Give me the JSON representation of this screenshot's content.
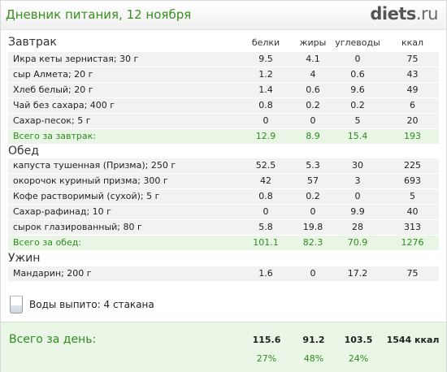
{
  "header": {
    "title": "Дневник питания, 12 ноября",
    "logo_main": "diets",
    "logo_tld": ".ru"
  },
  "columns": {
    "protein": "белки",
    "fat": "жиры",
    "carbs": "углеводы",
    "kcal": "ккал"
  },
  "sections": [
    {
      "title": "Завтрак",
      "items": [
        {
          "name": "Икра кеты зернистая; 30 г",
          "protein": "9.5",
          "fat": "4.1",
          "carbs": "0",
          "kcal": "75"
        },
        {
          "name": "сыр Алмета; 20 г",
          "protein": "1.2",
          "fat": "4",
          "carbs": "0.6",
          "kcal": "43"
        },
        {
          "name": "Хлеб белый; 20 г",
          "protein": "1.4",
          "fat": "0.6",
          "carbs": "9.6",
          "kcal": "49"
        },
        {
          "name": "Чай без сахара; 400 г",
          "protein": "0.8",
          "fat": "0.2",
          "carbs": "0.2",
          "kcal": "6"
        },
        {
          "name": "Сахар-песок; 5 г",
          "protein": "0",
          "fat": "0",
          "carbs": "5",
          "kcal": "20"
        }
      ],
      "total": {
        "name": "Всего за завтрак:",
        "protein": "12.9",
        "fat": "8.9",
        "carbs": "15.4",
        "kcal": "193"
      }
    },
    {
      "title": "Обед",
      "items": [
        {
          "name": "капуста тушенная (Призма); 250 г",
          "protein": "52.5",
          "fat": "5.3",
          "carbs": "30",
          "kcal": "225"
        },
        {
          "name": "окорочок куриный призма; 300 г",
          "protein": "42",
          "fat": "57",
          "carbs": "3",
          "kcal": "693"
        },
        {
          "name": "Кофе растворимый (сухой); 5 г",
          "protein": "0.8",
          "fat": "0.2",
          "carbs": "0",
          "kcal": "5"
        },
        {
          "name": "Сахар-рафинад; 10 г",
          "protein": "0",
          "fat": "0",
          "carbs": "9.9",
          "kcal": "40"
        },
        {
          "name": "сырок глазированный; 80 г",
          "protein": "5.8",
          "fat": "19.8",
          "carbs": "28",
          "kcal": "313"
        }
      ],
      "total": {
        "name": "Всего за обед:",
        "protein": "101.1",
        "fat": "82.3",
        "carbs": "70.9",
        "kcal": "1276"
      }
    },
    {
      "title": "Ужин",
      "items": [
        {
          "name": "Мандарин; 200 г",
          "protein": "1.6",
          "fat": "0",
          "carbs": "17.2",
          "kcal": "75"
        }
      ]
    }
  ],
  "water": {
    "text": "Воды выпито: 4 стакана",
    "icon": "water-glass-icon"
  },
  "day_total": {
    "label": "Всего за день:",
    "protein": "115.6",
    "fat": "91.2",
    "carbs": "103.5",
    "kcal": "1544 ккал",
    "protein_pct": "27%",
    "fat_pct": "48%",
    "carbs_pct": "24%"
  }
}
